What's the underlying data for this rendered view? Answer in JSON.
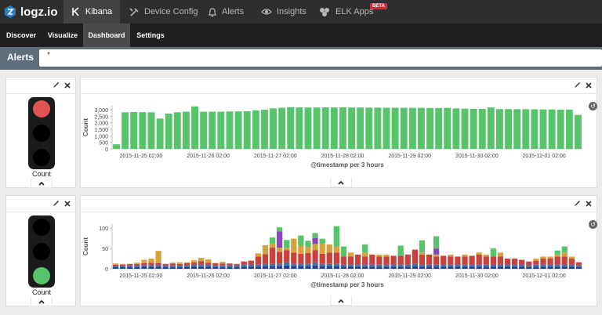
{
  "app": {
    "brand": "logz.io",
    "logo_icon": "logzio-logo-icon"
  },
  "nav": {
    "kibana": "Kibana",
    "device_config": "Device Config",
    "alerts": "Alerts",
    "insights": "Insights",
    "elk_apps": "ELK Apps",
    "beta": "BETA"
  },
  "subnav": {
    "discover": "Discover",
    "visualize": "Visualize",
    "dashboard": "Dashboard",
    "settings": "Settings"
  },
  "query": {
    "label": "Alerts",
    "value": "*"
  },
  "panel1": {
    "light_label": "Count",
    "active_light": "red"
  },
  "panel2": {
    "light_label": "Count",
    "active_light": "green"
  },
  "colors": {
    "green": "#57c36b",
    "red": "#e05353",
    "brown": "#c8413a",
    "gold": "#d7a13d",
    "purple": "#8b44c6",
    "blue": "#3f6fb6",
    "navy": "#2f4ea6",
    "darkblue": "#243f92"
  },
  "chart_data": [
    {
      "type": "bar",
      "ylabel": "Count",
      "xlabel": "@timestamp per 3 hours",
      "yticks": [
        "0",
        "500",
        "1,000",
        "1,500",
        "2,000",
        "2,500",
        "3,000"
      ],
      "ylim": [
        0,
        3300
      ],
      "xticks": [
        "2015-11-25 02:00",
        "2015-11-26 02:00",
        "2015-11-27 02:00",
        "2015-11-28 02:00",
        "2015-11-29 02:00",
        "2015-11-30 02:00",
        "2015-12-01 02:00"
      ],
      "values": [
        350,
        2800,
        2820,
        2810,
        2800,
        2320,
        2700,
        2800,
        2850,
        3250,
        2850,
        2850,
        2850,
        2860,
        2870,
        2880,
        2950,
        3000,
        3100,
        3150,
        3200,
        3180,
        3170,
        3170,
        3180,
        3170,
        3180,
        3170,
        3170,
        3160,
        3160,
        3150,
        3150,
        3150,
        3140,
        3140,
        3130,
        3130,
        3140,
        3100,
        3080,
        3070,
        3060,
        3180,
        3050,
        3050,
        3040,
        3040,
        3030,
        3020,
        3020,
        3000,
        3010,
        2600
      ],
      "color": "#57c36b"
    },
    {
      "type": "bar",
      "stacked": true,
      "ylabel": "Count",
      "xlabel": "@timestamp per 3 hours",
      "yticks": [
        "0",
        "50",
        "100"
      ],
      "ylim": [
        0,
        110
      ],
      "xticks": [
        "2015-11-25 02:00",
        "2015-11-26 02:00",
        "2015-11-27 02:00",
        "2015-11-28 02:00",
        "2015-11-29 02:00",
        "2015-11-30 02:00",
        "2015-12-01 02:00"
      ],
      "stacks": [
        [
          4,
          3,
          3,
          3,
          0,
          0
        ],
        [
          4,
          3,
          3,
          2,
          0,
          0
        ],
        [
          4,
          4,
          4,
          0,
          0,
          0
        ],
        [
          4,
          4,
          4,
          3,
          0,
          0
        ],
        [
          5,
          4,
          5,
          8,
          0,
          0
        ],
        [
          5,
          4,
          6,
          10,
          0,
          0
        ],
        [
          5,
          4,
          5,
          30,
          0,
          0
        ],
        [
          4,
          4,
          4,
          0,
          0,
          0
        ],
        [
          4,
          4,
          5,
          2,
          0,
          0
        ],
        [
          4,
          4,
          4,
          4,
          0,
          0
        ],
        [
          4,
          4,
          6,
          2,
          0,
          0
        ],
        [
          5,
          5,
          6,
          5,
          0,
          0
        ],
        [
          5,
          5,
          9,
          8,
          0,
          0
        ],
        [
          5,
          5,
          5,
          8,
          0,
          0
        ],
        [
          4,
          4,
          6,
          0,
          0,
          0
        ],
        [
          4,
          4,
          5,
          4,
          0,
          0
        ],
        [
          4,
          4,
          5,
          0,
          0,
          0
        ],
        [
          4,
          4,
          4,
          0,
          0,
          0
        ],
        [
          5,
          5,
          8,
          0,
          0,
          0
        ],
        [
          5,
          5,
          10,
          0,
          0,
          0
        ],
        [
          5,
          5,
          20,
          8,
          0,
          0
        ],
        [
          6,
          6,
          24,
          22,
          0,
          0
        ],
        [
          6,
          6,
          40,
          10,
          0,
          15
        ],
        [
          6,
          6,
          30,
          10,
          40,
          10
        ],
        [
          8,
          8,
          30,
          5,
          0,
          20
        ],
        [
          6,
          6,
          28,
          34,
          0,
          0
        ],
        [
          6,
          6,
          25,
          20,
          0,
          25
        ],
        [
          6,
          6,
          27,
          15,
          0,
          15
        ],
        [
          8,
          8,
          30,
          15,
          15,
          12
        ],
        [
          6,
          6,
          25,
          25,
          0,
          12
        ],
        [
          6,
          6,
          28,
          20,
          0,
          0
        ],
        [
          6,
          6,
          28,
          15,
          0,
          50
        ],
        [
          5,
          5,
          20,
          0,
          0,
          25
        ],
        [
          5,
          5,
          20,
          10,
          0,
          0
        ],
        [
          5,
          5,
          25,
          0,
          0,
          0
        ],
        [
          5,
          5,
          20,
          10,
          0,
          20
        ],
        [
          5,
          5,
          25,
          0,
          0,
          0
        ],
        [
          5,
          5,
          20,
          5,
          0,
          0
        ],
        [
          5,
          5,
          20,
          5,
          0,
          0
        ],
        [
          5,
          5,
          22,
          0,
          0,
          0
        ],
        [
          5,
          5,
          22,
          0,
          0,
          25
        ],
        [
          5,
          5,
          25,
          0,
          0,
          0
        ],
        [
          6,
          6,
          35,
          0,
          0,
          0
        ],
        [
          5,
          5,
          25,
          5,
          0,
          30
        ],
        [
          5,
          5,
          25,
          0,
          0,
          0
        ],
        [
          5,
          5,
          20,
          5,
          15,
          30
        ],
        [
          5,
          5,
          22,
          0,
          0,
          0
        ],
        [
          5,
          5,
          20,
          5,
          0,
          0
        ],
        [
          5,
          5,
          20,
          0,
          0,
          0
        ],
        [
          5,
          5,
          20,
          5,
          0,
          0
        ],
        [
          5,
          5,
          22,
          0,
          0,
          0
        ],
        [
          5,
          5,
          25,
          5,
          0,
          0
        ],
        [
          5,
          5,
          20,
          5,
          0,
          0
        ],
        [
          5,
          5,
          20,
          0,
          0,
          20
        ],
        [
          5,
          5,
          20,
          10,
          0,
          0
        ],
        [
          5,
          5,
          15,
          0,
          0,
          0
        ],
        [
          5,
          5,
          15,
          0,
          0,
          0
        ],
        [
          5,
          5,
          12,
          0,
          0,
          0
        ],
        [
          4,
          4,
          10,
          0,
          0,
          0
        ],
        [
          5,
          5,
          10,
          5,
          0,
          0
        ],
        [
          5,
          5,
          15,
          5,
          0,
          0
        ],
        [
          5,
          5,
          15,
          5,
          0,
          0
        ],
        [
          5,
          5,
          20,
          5,
          0,
          10
        ],
        [
          5,
          5,
          20,
          10,
          0,
          15
        ],
        [
          5,
          5,
          15,
          5,
          0,
          0
        ],
        [
          4,
          4,
          8,
          0,
          0,
          0
        ]
      ],
      "stack_colors": [
        "#243f92",
        "#3f6fb6",
        "#c8413a",
        "#d7a13d",
        "#8b44c6",
        "#57c36b"
      ]
    }
  ]
}
